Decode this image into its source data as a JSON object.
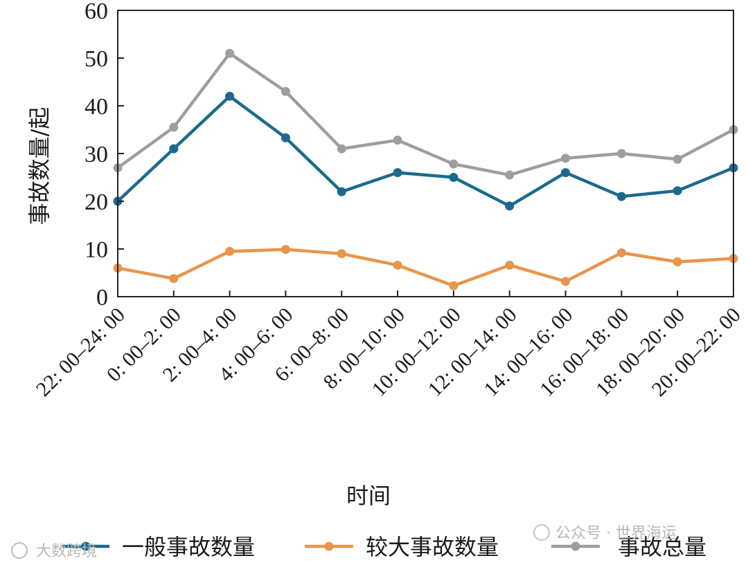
{
  "chart_data": {
    "type": "line",
    "categories": [
      "22: 00–24: 00",
      "0: 00–2: 00",
      "2: 00–4: 00",
      "4: 00–6: 00",
      "6: 00–8: 00",
      "8: 00–10: 00",
      "10: 00–12: 00",
      "12: 00–14: 00",
      "14: 00–16: 00",
      "16: 00–18: 00",
      "18: 00–20: 00",
      "20: 00–22: 00"
    ],
    "series": [
      {
        "name": "一般事故数量",
        "color": "#1b6a8c",
        "values": [
          20,
          31,
          42,
          33.3,
          22,
          26,
          25,
          19,
          26,
          21,
          22.2,
          27
        ]
      },
      {
        "name": "较大事故数量",
        "color": "#e8954a",
        "values": [
          6,
          3.8,
          9.5,
          9.9,
          9,
          6.6,
          2.3,
          6.6,
          3.2,
          9.2,
          7.3,
          8
        ]
      },
      {
        "name": "事故总量",
        "color": "#9e9e9e",
        "values": [
          27,
          35.5,
          51,
          43,
          31,
          32.8,
          27.8,
          25.5,
          29,
          30,
          28.8,
          35
        ]
      }
    ],
    "xlabel": "时间",
    "ylabel": "事故数量/起",
    "ylim": [
      0,
      60
    ],
    "yticks": [
      0,
      10,
      20,
      30,
      40,
      50,
      60
    ],
    "grid": false,
    "legend_position": "bottom"
  },
  "watermarks": {
    "left": "大数跨境",
    "right": "公众号 · 世界海运"
  }
}
